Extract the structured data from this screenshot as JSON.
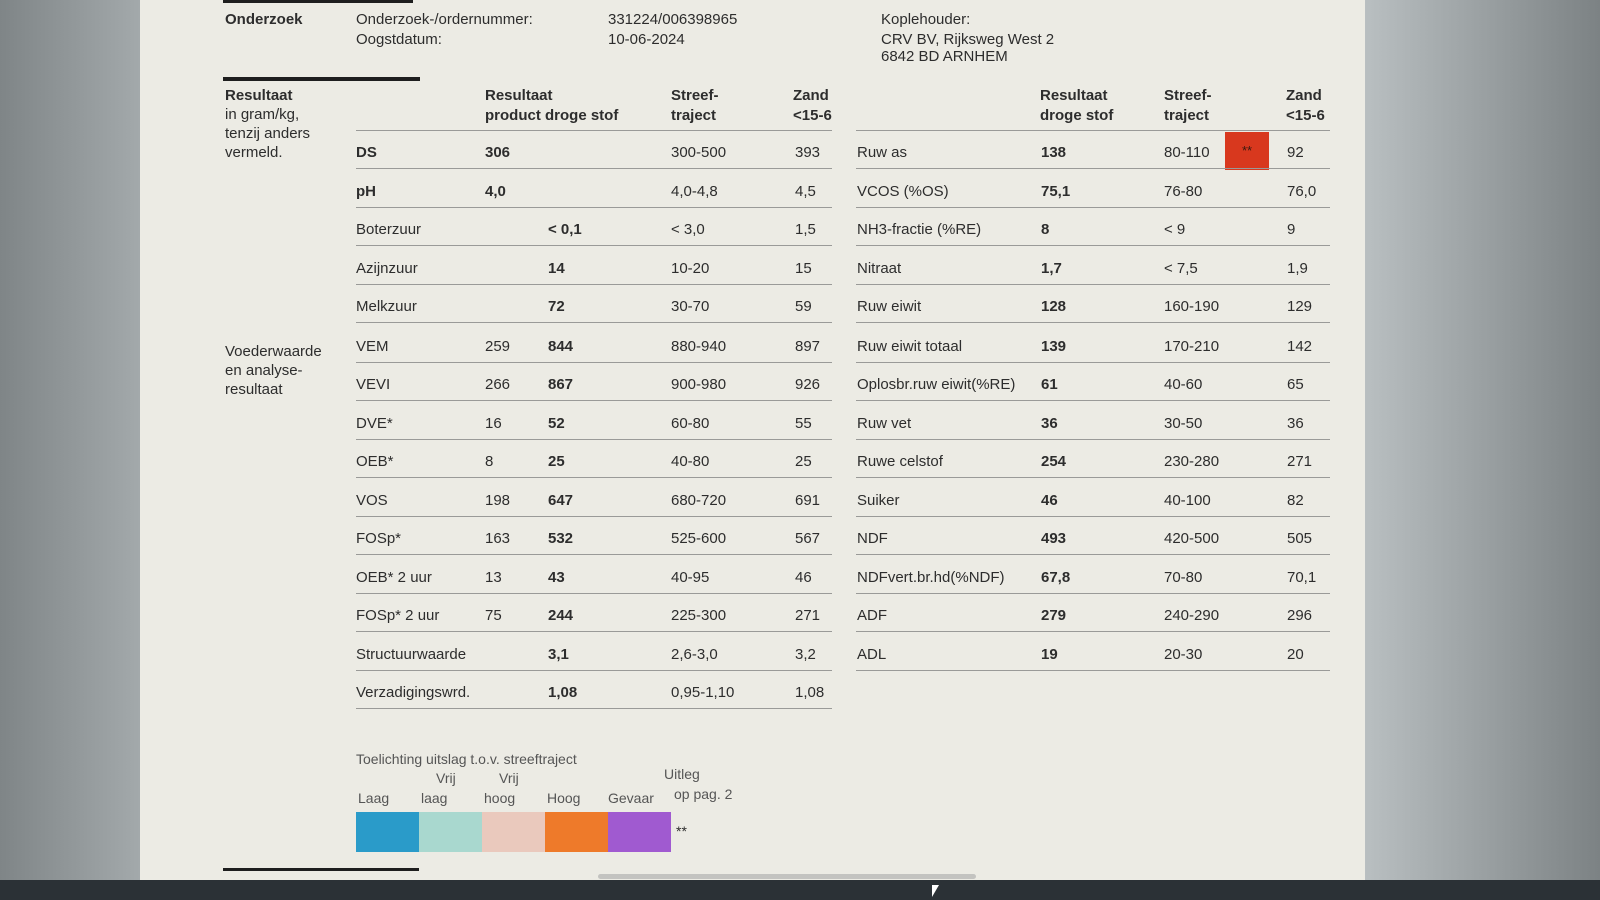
{
  "header": {
    "section_label": "Onderzoek",
    "order_label": "Onderzoek-/ordernummer:",
    "order_value": "331224/006398965",
    "date_label": "Oogstdatum:",
    "date_value": "10-06-2024",
    "client_label": "Koplehouder:",
    "client_line1": "CRV BV, Rijksweg West 2",
    "client_line2": "6842 BD  ARNHEM"
  },
  "result_label": [
    "Resultaat",
    "in gram/kg,",
    "tenzij anders",
    "vermeld."
  ],
  "voederwaarde_label": [
    "Voederwaarde",
    "en analyse-",
    "resultaat"
  ],
  "left_headers": {
    "result1": "Resultaat",
    "result2": "product  droge stof",
    "range1": "Streef-",
    "range2": "traject",
    "sand1": "Zand",
    "sand2": "<15-6"
  },
  "right_headers": {
    "result1": "Resultaat",
    "result2": "droge stof",
    "range1": "Streef-",
    "range2": "traject",
    "sand1": "Zand",
    "sand2": "<15-6"
  },
  "left_rows": [
    {
      "name": "DS",
      "product": "306",
      "dry": "",
      "range": "300-500",
      "sand": "393"
    },
    {
      "name": "pH",
      "product": "4,0",
      "dry": "",
      "range": "4,0-4,8",
      "sand": "4,5"
    },
    {
      "name": "Boterzuur",
      "product": "",
      "dry": "< 0,1",
      "range": "< 3,0",
      "sand": "1,5"
    },
    {
      "name": "Azijnzuur",
      "product": "",
      "dry": "14",
      "range": "10-20",
      "sand": "15"
    },
    {
      "name": "Melkzuur",
      "product": "",
      "dry": "72",
      "range": "30-70",
      "sand": "59"
    },
    {
      "name": "VEM",
      "product": "259",
      "dry": "844",
      "range": "880-940",
      "sand": "897"
    },
    {
      "name": "VEVI",
      "product": "266",
      "dry": "867",
      "range": "900-980",
      "sand": "926"
    },
    {
      "name": "DVE*",
      "product": "16",
      "dry": "52",
      "range": "60-80",
      "sand": "55"
    },
    {
      "name": "OEB*",
      "product": "8",
      "dry": "25",
      "range": "40-80",
      "sand": "25"
    },
    {
      "name": "VOS",
      "product": "198",
      "dry": "647",
      "range": "680-720",
      "sand": "691"
    },
    {
      "name": "FOSp*",
      "product": "163",
      "dry": "532",
      "range": "525-600",
      "sand": "567"
    },
    {
      "name": "OEB* 2 uur",
      "product": "13",
      "dry": "43",
      "range": "40-95",
      "sand": "46"
    },
    {
      "name": "FOSp* 2 uur",
      "product": "75",
      "dry": "244",
      "range": "225-300",
      "sand": "271"
    },
    {
      "name": "Structuurwaarde",
      "product": "",
      "dry": "3,1",
      "range": "2,6-3,0",
      "sand": "3,2"
    },
    {
      "name": "Verzadigingswrd.",
      "product": "",
      "dry": "1,08",
      "range": "0,95-1,10",
      "sand": "1,08"
    }
  ],
  "right_rows": [
    {
      "name": "Ruw as",
      "dry": "138",
      "range": "80-110",
      "flag": "**",
      "sand": "92"
    },
    {
      "name": "VCOS (%OS)",
      "dry": "75,1",
      "range": "76-80",
      "flag": "",
      "sand": "76,0"
    },
    {
      "name": "NH3-fractie (%RE)",
      "dry": "8",
      "range": "< 9",
      "flag": "",
      "sand": "9"
    },
    {
      "name": "Nitraat",
      "dry": "1,7",
      "range": "< 7,5",
      "flag": "",
      "sand": "1,9"
    },
    {
      "name": "Ruw eiwit",
      "dry": "128",
      "range": "160-190",
      "flag": "",
      "sand": "129"
    },
    {
      "name": "Ruw eiwit totaal",
      "dry": "139",
      "range": "170-210",
      "flag": "",
      "sand": "142"
    },
    {
      "name": "Oplosbr.ruw eiwit(%RE)",
      "dry": "61",
      "range": "40-60",
      "flag": "",
      "sand": "65"
    },
    {
      "name": "Ruw vet",
      "dry": "36",
      "range": "30-50",
      "flag": "",
      "sand": "36"
    },
    {
      "name": "Ruwe celstof",
      "dry": "254",
      "range": "230-280",
      "flag": "",
      "sand": "271"
    },
    {
      "name": "Suiker",
      "dry": "46",
      "range": "40-100",
      "flag": "",
      "sand": "82"
    },
    {
      "name": "NDF",
      "dry": "493",
      "range": "420-500",
      "flag": "",
      "sand": "505"
    },
    {
      "name": "NDFvert.br.hd(%NDF)",
      "dry": "67,8",
      "range": "70-80",
      "flag": "",
      "sand": "70,1"
    },
    {
      "name": "ADF",
      "dry": "279",
      "range": "240-290",
      "flag": "",
      "sand": "296"
    },
    {
      "name": "ADL",
      "dry": "19",
      "range": "20-30",
      "flag": "",
      "sand": "20"
    }
  ],
  "legend": {
    "title": "Toelichting uitslag t.o.v. streeftraject",
    "items": [
      {
        "top": "",
        "bottom": "Laag",
        "color": "#2a9bc9"
      },
      {
        "top": "Vrij",
        "bottom": "laag",
        "color": "#a9d8cf"
      },
      {
        "top": "Vrij",
        "bottom": "hoog",
        "color": "#eac9bd"
      },
      {
        "top": "",
        "bottom": "Hoog",
        "color": "#ee7a2a"
      },
      {
        "top": "",
        "bottom": "Gevaar",
        "color": "#a05ad0"
      }
    ],
    "note_top": "Uitleg",
    "note_bottom": "op pag. 2",
    "note_mark": "**"
  },
  "flag_color": "#d8381e"
}
